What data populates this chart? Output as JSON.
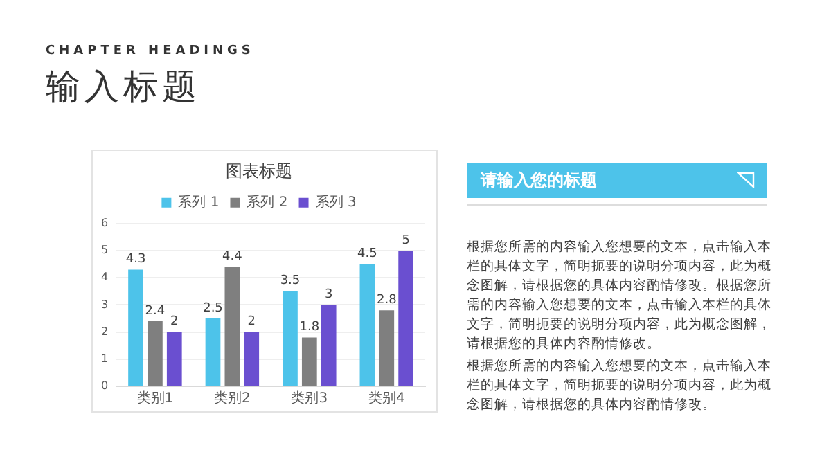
{
  "chart_data": {
    "type": "bar",
    "title": "图表标题",
    "categories": [
      "类别1",
      "类别2",
      "类别3",
      "类别4"
    ],
    "series": [
      {
        "name": "系列 1",
        "color": "#4dc3ea",
        "values": [
          4.3,
          2.5,
          3.5,
          4.5
        ]
      },
      {
        "name": "系列 2",
        "color": "#7f7f7f",
        "values": [
          2.4,
          4.4,
          1.8,
          2.8
        ]
      },
      {
        "name": "系列 3",
        "color": "#6a4fd0",
        "values": [
          2,
          2,
          3,
          5
        ]
      }
    ],
    "ylim": [
      0,
      6
    ],
    "yticks": [
      0,
      1,
      2,
      3,
      4,
      5,
      6
    ],
    "grid": "y",
    "legend": "top",
    "data_labels": true,
    "annotations": [
      "CHAPTER HEADINGS",
      "输入标题",
      "请输入您的标题",
      "根据您所需的内容输入您想要的文本，点击输入本栏的具体文字，简明扼要的说明分项内容，此为概念图解，请根据您的具体内容酌情修改。根据您所需的内容输入您想要的文本，点击输入本栏的具体文字，简明扼要的说明分项内容，此为概念图解，请根据您的具体内容酌情修改。",
      "根据您所需的内容输入您想要的文本，点击输入本栏的具体文字，简明扼要的说明分项内容，此为概念图解，请根据您的具体内容酌情修改。"
    ]
  }
}
